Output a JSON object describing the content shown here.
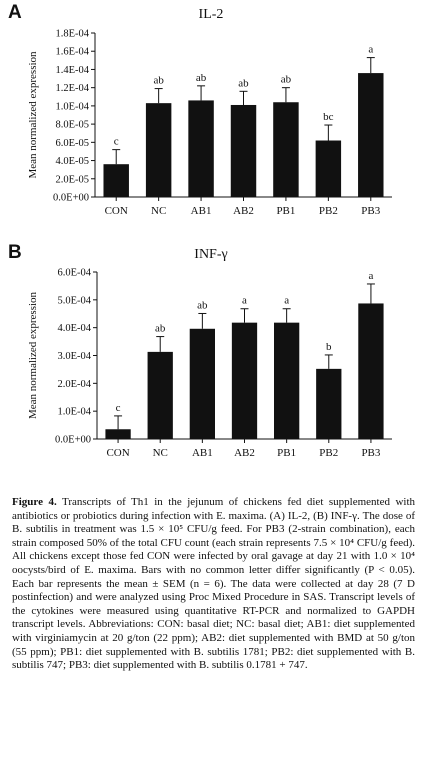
{
  "panels": {
    "a": {
      "letter": "A",
      "title": "IL-2"
    },
    "b": {
      "letter": "B",
      "title": "INF-γ"
    }
  },
  "chart_data": [
    {
      "type": "bar",
      "title": "IL-2",
      "ylabel": "Mean normalized expression",
      "xlabel": "",
      "categories": [
        "CON",
        "NC",
        "AB1",
        "AB2",
        "PB1",
        "PB2",
        "PB3"
      ],
      "values": [
        3.6e-05,
        0.000103,
        0.000106,
        0.000101,
        0.000104,
        6.2e-05,
        0.000136
      ],
      "errors": [
        1.6e-05,
        1.6e-05,
        1.6e-05,
        1.5e-05,
        1.6e-05,
        1.7e-05,
        1.7e-05
      ],
      "letters": [
        "c",
        "ab",
        "ab",
        "ab",
        "ab",
        "bc",
        "a"
      ],
      "ylim": [
        0,
        0.00018
      ],
      "yticks": [
        "0.0E+00",
        "2.0E-05",
        "4.0E-05",
        "6.0E-05",
        "8.0E-05",
        "1.0E-04",
        "1.2E-04",
        "1.4E-04",
        "1.6E-04",
        "1.8E-04"
      ],
      "grid": false,
      "bar_color": "#111111"
    },
    {
      "type": "bar",
      "title": "INF-γ",
      "ylabel": "Mean normalized expression",
      "xlabel": "",
      "categories": [
        "CON",
        "NC",
        "AB1",
        "AB2",
        "PB1",
        "PB2",
        "PB3"
      ],
      "values": [
        3.5e-05,
        0.000313,
        0.000396,
        0.000418,
        0.000418,
        0.000252,
        0.000487
      ],
      "errors": [
        4.8e-05,
        5.5e-05,
        5.5e-05,
        5e-05,
        5e-05,
        5e-05,
        7e-05
      ],
      "letters": [
        "c",
        "ab",
        "ab",
        "a",
        "a",
        "b",
        "a"
      ],
      "ylim": [
        0,
        0.0006
      ],
      "yticks": [
        "0.0E+00",
        "1.0E-04",
        "2.0E-04",
        "3.0E-04",
        "4.0E-04",
        "5.0E-04",
        "6.0E-04"
      ],
      "grid": false,
      "bar_color": "#111111"
    }
  ],
  "caption": {
    "figure_label": "Figure 4.",
    "text": " Transcripts of Th1 in the jejunum of chickens fed diet supplemented with antibiotics or probiotics during infection with E. maxima. (A) IL-2, (B) INF-γ. The dose of B. subtilis in treatment was 1.5 × 10⁵ CFU/g feed. For PB3 (2-strain combination), each strain composed 50% of the total CFU count (each strain represents 7.5 × 10⁴ CFU/g feed). All chickens except those fed CON were infected by oral gavage at day 21 with 1.0 × 10⁴ oocysts/bird of E. maxima. Bars with no common letter differ significantly (P < 0.05). Each bar represents the mean ± SEM (n = 6). The data were collected at day 28 (7 D postinfection) and were analyzed using Proc Mixed Procedure in SAS. Transcript levels of the cytokines were measured using quantitative RT-PCR and normalized to GAPDH transcript levels. Abbreviations: CON: basal diet; NC: basal diet; AB1: diet supplemented with virginiamycin at 20 g/ton (22 ppm); AB2: diet supplemented with BMD at 50 g/ton (55 ppm); PB1: diet supplemented with B. subtilis 1781; PB2: diet supplemented with B. subtilis 747; PB3: diet supplemented with B. subtilis 0.1781 + 747."
  }
}
